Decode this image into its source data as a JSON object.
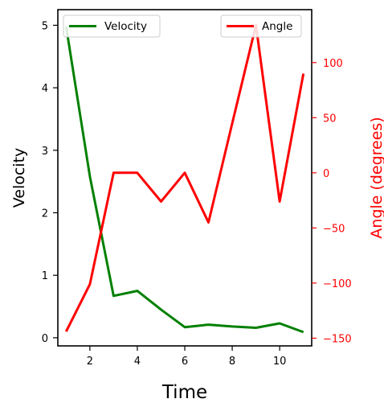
{
  "chart_data": {
    "type": "line",
    "xlabel": "Time",
    "x": [
      1,
      2,
      3,
      4,
      5,
      6,
      7,
      8,
      9,
      10,
      11
    ],
    "xlim": [
      0.65,
      11.35
    ],
    "xticks": [
      2,
      4,
      6,
      8,
      10
    ],
    "grid": false,
    "y_left": {
      "label": "Velocity",
      "lim": [
        -0.13,
        5.25
      ],
      "ticks": [
        0,
        1,
        2,
        3,
        4,
        5
      ],
      "color": "#000000"
    },
    "y_right": {
      "label": "Angle (degrees)",
      "lim": [
        -157,
        148
      ],
      "ticks": [
        -150,
        -100,
        -50,
        0,
        50,
        100
      ],
      "color": "#ff0000"
    },
    "series": [
      {
        "name": "Velocity",
        "axis": "left",
        "color": "#008000",
        "values": [
          4.98,
          2.58,
          0.67,
          0.75,
          0.45,
          0.17,
          0.21,
          0.18,
          0.16,
          0.23,
          0.09
        ]
      },
      {
        "name": "Angle",
        "axis": "right",
        "color": "#ff0000",
        "values": [
          -144,
          -101,
          0,
          0,
          -26,
          0,
          -45,
          45,
          134,
          -26,
          90
        ]
      }
    ],
    "legends": [
      {
        "series": "Velocity",
        "placement": "upper left"
      },
      {
        "series": "Angle",
        "placement": "upper right"
      }
    ]
  }
}
